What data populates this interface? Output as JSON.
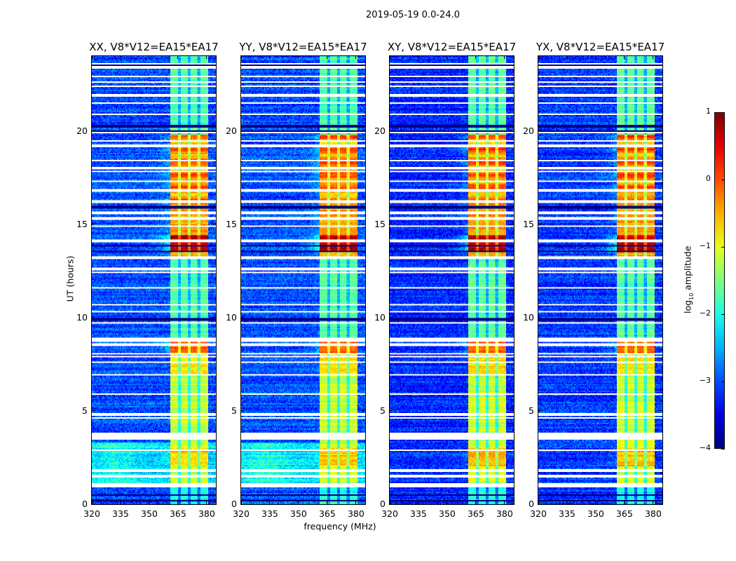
{
  "suptitle": "2019-05-19 0.0-24.0",
  "xlabel": "frequency (MHz)",
  "ylabel": "UT (hours)",
  "colorbar": {
    "label_prefix": "log",
    "label_sub": "10",
    "label_suffix": " amplitude",
    "range": [
      -4,
      1
    ],
    "ticks": [
      "−4",
      "−3",
      "−2",
      "−1",
      "0",
      "1"
    ],
    "tick_values": [
      -4,
      -3,
      -2,
      -1,
      0,
      1
    ],
    "colormap": "jet"
  },
  "chart_data": [
    {
      "type": "heatmap",
      "title": "XX, V8*V12=EA15*EA17",
      "pol": "XX"
    },
    {
      "type": "heatmap",
      "title": "YY, V8*V12=EA15*EA17",
      "pol": "YY"
    },
    {
      "type": "heatmap",
      "title": "XY, V8*V12=EA15*EA17",
      "pol": "XY"
    },
    {
      "type": "heatmap",
      "title": "YX, V8*V12=EA15*EA17",
      "pol": "YX"
    }
  ],
  "axes": {
    "xlim": [
      320,
      384.8
    ],
    "ylim": [
      0,
      24
    ],
    "xticks": [
      320,
      335,
      350,
      365,
      380
    ],
    "xtick_labels": [
      "320",
      "335",
      "350",
      "365",
      "380"
    ],
    "yticks": [
      0,
      5,
      10,
      15,
      20
    ],
    "ytick_labels": [
      "0",
      "5",
      "10",
      "15",
      "20"
    ]
  },
  "model": {
    "band_mhz": [
      361,
      380.8
    ],
    "band_gaps_mhz": [
      365.8,
      370.9,
      376.0
    ],
    "background_log_amp": {
      "XX": -3.0,
      "YY": -3.0,
      "XY": -3.2,
      "YX": -3.1
    },
    "elevated_background": {
      "hours": [
        0.9,
        3.3
      ],
      "log_amp": -2.3,
      "pols": [
        "XX",
        "YY"
      ]
    },
    "band_levels": [
      {
        "hours": [
          0,
          1.0
        ],
        "log_amp": -2.0
      },
      {
        "hours": [
          1.0,
          2.0
        ],
        "log_amp": -1.1
      },
      {
        "hours": [
          2.0,
          3.0
        ],
        "log_amp": -0.6
      },
      {
        "hours": [
          3.0,
          7.0
        ],
        "log_amp": -1.15
      },
      {
        "hours": [
          7.0,
          8.0
        ],
        "log_amp": -0.8
      },
      {
        "hours": [
          8.0,
          8.8
        ],
        "log_amp": -0.1
      },
      {
        "hours": [
          8.8,
          13.2
        ],
        "log_amp": -1.7
      },
      {
        "hours": [
          13.2,
          13.6
        ],
        "log_amp": -0.5
      },
      {
        "hours": [
          13.6,
          14.4
        ],
        "log_amp": 0.7
      },
      {
        "hours": [
          14.4,
          15.5
        ],
        "log_amp": -0.4
      },
      {
        "hours": [
          15.5,
          19.8
        ],
        "log_amp": -0.3
      },
      {
        "hours": [
          19.8,
          24
        ],
        "log_amp": -1.7
      }
    ],
    "flagged_hours": [
      0.95,
      1.05,
      1.5,
      1.8,
      2.9,
      3.5,
      3.6,
      3.75,
      4.6,
      4.8,
      5.9,
      6.95,
      7.6,
      7.9,
      8.05,
      8.55,
      8.75,
      8.85,
      9.7,
      10.3,
      10.7,
      11.6,
      12.4,
      12.6,
      13.2,
      14.1,
      14.9,
      15.3,
      15.6,
      16.2,
      16.8,
      17.3,
      17.8,
      18.0,
      18.4,
      19.2,
      19.45,
      19.9,
      20.9,
      21.5,
      21.9,
      22.4,
      22.6,
      22.9,
      23.4,
      23.6
    ],
    "zero_hours": [
      0.2,
      0.5,
      9.9,
      13.55,
      13.85,
      15.9,
      20.0,
      20.25,
      23.55
    ]
  }
}
